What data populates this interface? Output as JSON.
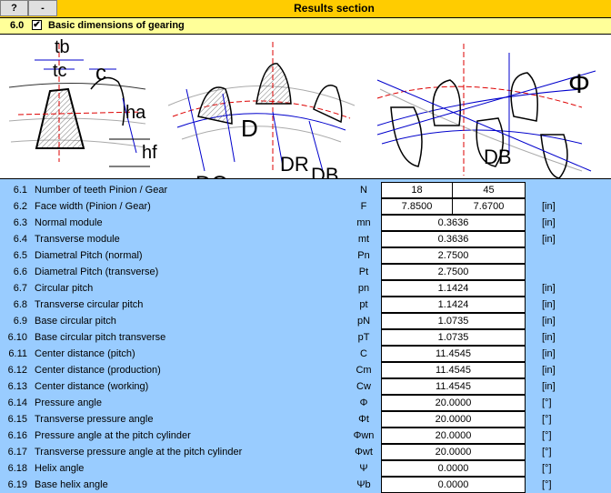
{
  "toolbar": {
    "help_label": "?",
    "minimize_label": "-",
    "title": "Results section"
  },
  "section": {
    "number": "6.0",
    "checked_mark": "✔",
    "title": "Basic dimensions of gearing"
  },
  "diagram": {
    "labels": {
      "tb": "tb",
      "tc": "tc",
      "c": "c",
      "ha": "ha",
      "hf": "hf",
      "D0": "DO",
      "D": "D",
      "DR": "DR",
      "DB": "DB",
      "DB2": "DB",
      "phi": "Φ"
    }
  },
  "rows": [
    {
      "num": "6.1",
      "label": "Number of teeth Pinion / Gear",
      "sym": "N",
      "v1": "18",
      "v2": "45",
      "unit": ""
    },
    {
      "num": "6.2",
      "label": "Face width (Pinion / Gear)",
      "sym": "F",
      "v1": "7.8500",
      "v2": "7.6700",
      "unit": "[in]"
    },
    {
      "num": "6.3",
      "label": "Normal module",
      "sym": "mn",
      "v": "0.3636",
      "unit": "[in]"
    },
    {
      "num": "6.4",
      "label": "Transverse module",
      "sym": "mt",
      "v": "0.3636",
      "unit": "[in]"
    },
    {
      "num": "6.5",
      "label": "Diametral Pitch (normal)",
      "sym": "Pn",
      "v": "2.7500",
      "unit": ""
    },
    {
      "num": "6.6",
      "label": "Diametral Pitch (transverse)",
      "sym": "Pt",
      "v": "2.7500",
      "unit": ""
    },
    {
      "num": "6.7",
      "label": "Circular pitch",
      "sym": "pn",
      "v": "1.1424",
      "unit": "[in]"
    },
    {
      "num": "6.8",
      "label": "Transverse circular pitch",
      "sym": "pt",
      "v": "1.1424",
      "unit": "[in]"
    },
    {
      "num": "6.9",
      "label": "Base circular pitch",
      "sym": "pN",
      "v": "1.0735",
      "unit": "[in]"
    },
    {
      "num": "6.10",
      "label": "Base circular pitch transverse",
      "sym": "pT",
      "v": "1.0735",
      "unit": "[in]"
    },
    {
      "num": "6.11",
      "label": "Center distance (pitch)",
      "sym": "C",
      "v": "11.4545",
      "unit": "[in]"
    },
    {
      "num": "6.12",
      "label": "Center distance (production)",
      "sym": "Cm",
      "v": "11.4545",
      "unit": "[in]"
    },
    {
      "num": "6.13",
      "label": "Center distance (working)",
      "sym": "Cw",
      "v": "11.4545",
      "unit": "[in]"
    },
    {
      "num": "6.14",
      "label": "Pressure angle",
      "sym": "Φ",
      "v": "20.0000",
      "unit": "[°]"
    },
    {
      "num": "6.15",
      "label": "Transverse pressure angle",
      "sym": "Φt",
      "v": "20.0000",
      "unit": "[°]"
    },
    {
      "num": "6.16",
      "label": "Pressure angle at the pitch cylinder",
      "sym": "Φwn",
      "v": "20.0000",
      "unit": "[°]"
    },
    {
      "num": "6.17",
      "label": "Transverse pressure angle at the pitch cylinder",
      "sym": "Φwt",
      "v": "20.0000",
      "unit": "[°]"
    },
    {
      "num": "6.18",
      "label": "Helix angle",
      "sym": "Ψ",
      "v": "0.0000",
      "unit": "[°]"
    },
    {
      "num": "6.19",
      "label": "Base helix angle",
      "sym": "Ψb",
      "v": "0.0000",
      "unit": "[°]"
    }
  ]
}
